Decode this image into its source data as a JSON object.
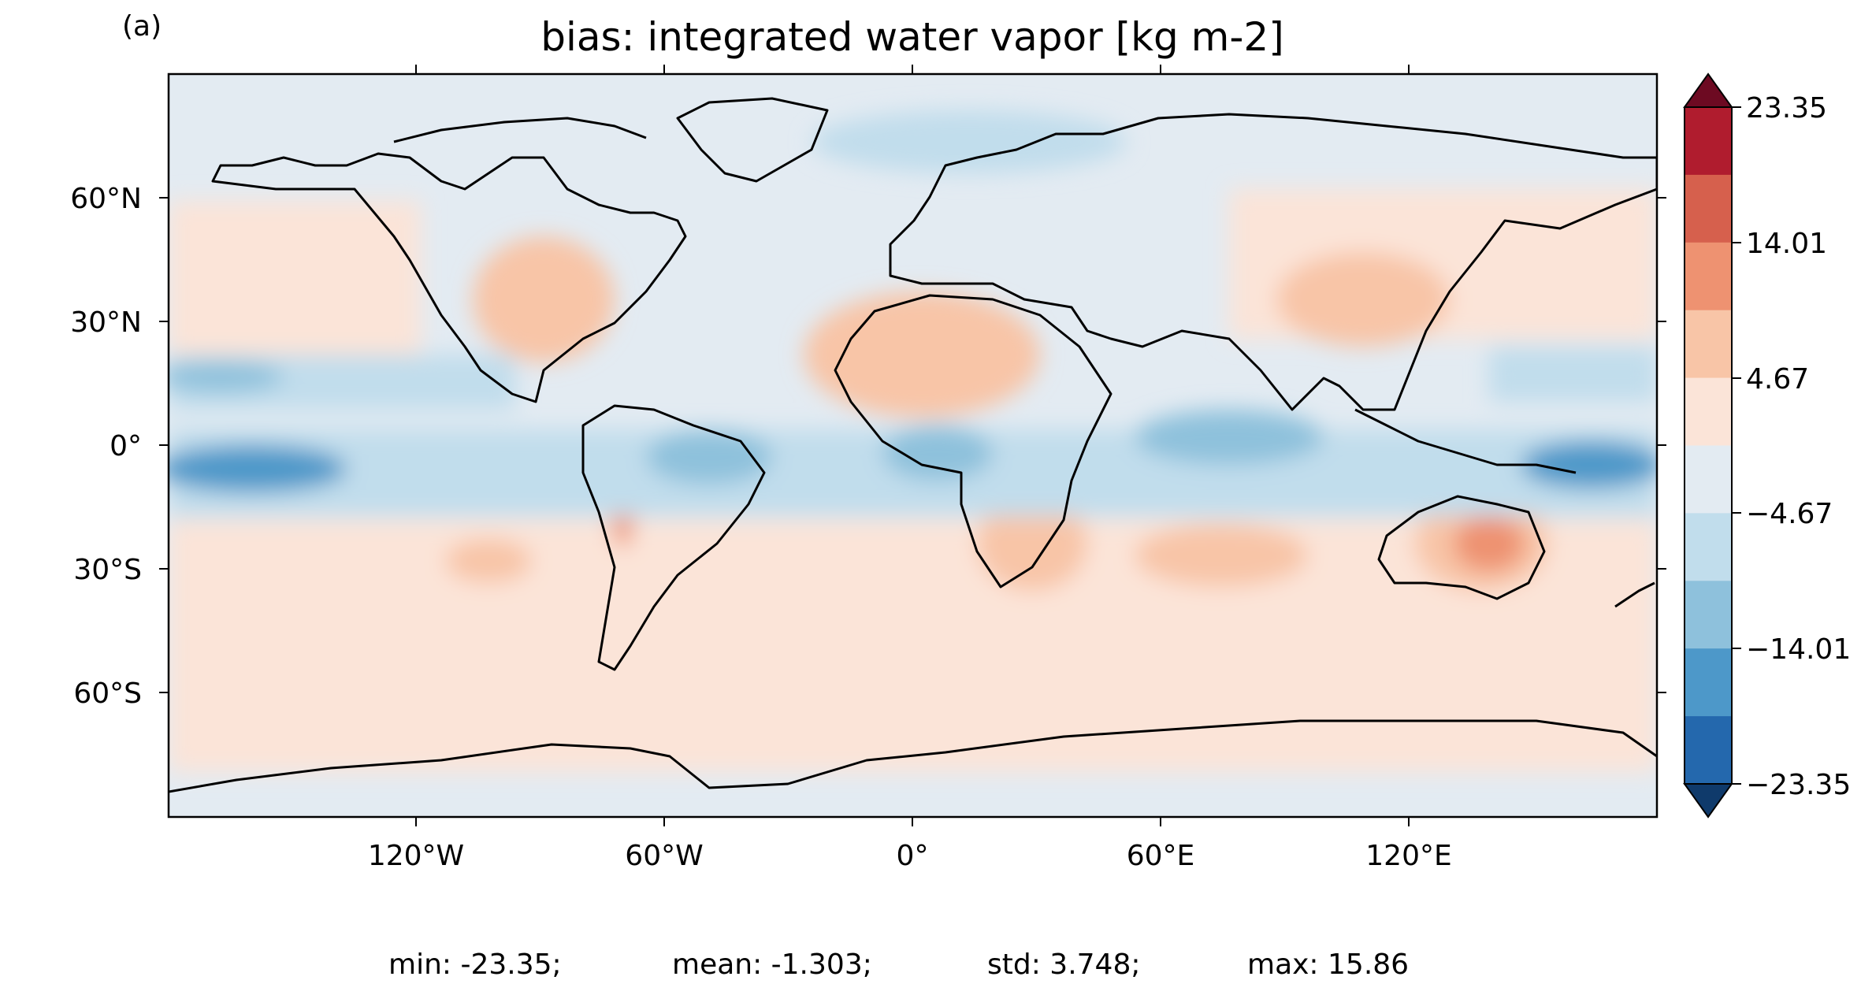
{
  "panel_label": "(a)",
  "title": "bias: integrated water vapor [kg m-2]",
  "lat_ticks": [
    "60°N",
    "30°N",
    "0°",
    "30°S",
    "60°S"
  ],
  "lon_ticks": [
    "120°W",
    "60°W",
    "0°",
    "60°E",
    "120°E"
  ],
  "colorbar": {
    "tick_labels": [
      "23.35",
      "14.01",
      "4.67",
      "−4.67",
      "−14.01",
      "−23.35"
    ],
    "colors": [
      "#6d0a22",
      "#b01c2e",
      "#d6604d",
      "#ee9271",
      "#f8c5a7",
      "#fbe4d8",
      "#e3ebf2",
      "#c1ddec",
      "#8ec1dc",
      "#4d98c9",
      "#2468ad",
      "#0f3a6b"
    ],
    "extend": "both"
  },
  "stats": {
    "min": "min: -23.35;",
    "mean": "mean: -1.303;",
    "std": "std: 3.748;",
    "max": "max: 15.86"
  },
  "chart_data": {
    "type": "heatmap",
    "title": "bias: integrated water vapor [kg m-2]",
    "projection": "PlateCarree",
    "xlim": [
      -180,
      180
    ],
    "ylim": [
      -90,
      90
    ],
    "color_levels": [
      -23.35,
      -18.68,
      -14.01,
      -9.34,
      -4.67,
      0,
      4.67,
      9.34,
      14.01,
      18.68,
      23.35
    ],
    "colormap": "RdBu_r",
    "summary": {
      "min": -23.35,
      "mean": -1.303,
      "std": 3.748,
      "max": 15.86
    }
  }
}
